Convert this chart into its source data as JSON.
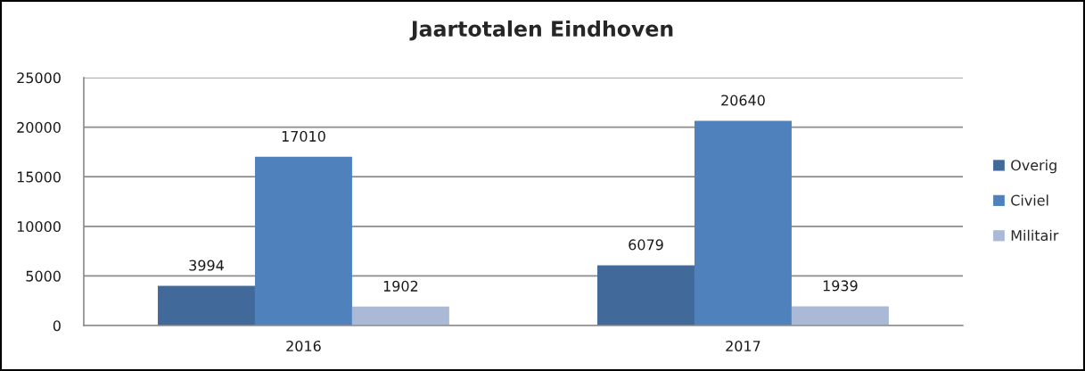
{
  "chart_data": {
    "type": "bar",
    "title": "Jaartotalen Eindhoven",
    "categories": [
      "2016",
      "2017"
    ],
    "series": [
      {
        "name": "Overig",
        "color": "#416a9b",
        "values": [
          3994,
          6079
        ]
      },
      {
        "name": "Civiel",
        "color": "#4f81bd",
        "values": [
          17010,
          20640
        ]
      },
      {
        "name": "Militair",
        "color": "#aab9d6",
        "values": [
          1902,
          1939
        ]
      }
    ],
    "ylim": [
      0,
      25000
    ],
    "yticks": [
      0,
      5000,
      10000,
      15000,
      20000,
      25000
    ],
    "grid": "y",
    "legend": "right",
    "data_labels": true
  }
}
